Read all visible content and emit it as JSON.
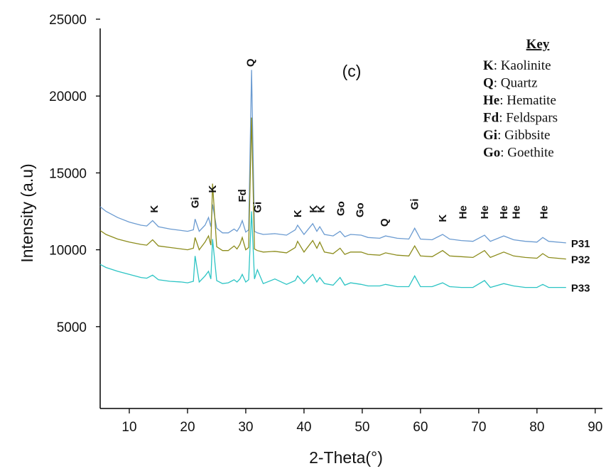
{
  "chart_data": {
    "type": "line",
    "panel_label": "(c)",
    "x_label": "2-Theta(°)",
    "y_label": "Intensity (a.u)",
    "xlim": [
      5,
      91
    ],
    "xticks": [
      10,
      20,
      30,
      40,
      50,
      60,
      70,
      80,
      90
    ],
    "ylim": [
      0,
      25000
    ],
    "yticks": [
      5000,
      10000,
      15000,
      20000,
      25000
    ],
    "x": [
      5,
      6,
      8,
      10,
      12,
      13,
      14,
      15,
      17,
      19,
      20,
      21,
      21.3,
      22,
      23,
      23.6,
      24,
      24.3,
      25,
      26,
      27,
      28,
      28.5,
      29,
      29.4,
      30,
      30.5,
      31,
      31.5,
      32,
      33,
      35,
      37,
      38.5,
      38.9,
      40,
      41.5,
      42.2,
      42.7,
      43.5,
      45,
      46.2,
      47,
      48,
      49.8,
      51,
      53,
      54,
      56,
      58,
      59,
      60,
      62,
      63.8,
      65,
      67,
      69,
      71,
      72,
      74.3,
      76,
      78,
      80,
      81,
      82,
      85
    ],
    "series": [
      {
        "name": "P31",
        "color": "#6b9bd1",
        "values": [
          12800,
          12500,
          12100,
          11800,
          11600,
          11550,
          11900,
          11500,
          11350,
          11250,
          11200,
          11300,
          12000,
          11200,
          11600,
          12100,
          11500,
          12950,
          11400,
          11100,
          11100,
          11350,
          11200,
          11500,
          11900,
          11150,
          11300,
          21700,
          11200,
          11100,
          11000,
          11050,
          10950,
          11300,
          11600,
          11000,
          11700,
          11200,
          11500,
          11000,
          10900,
          11200,
          10850,
          11000,
          10950,
          10800,
          10750,
          10900,
          10750,
          10700,
          11400,
          10700,
          10650,
          11000,
          10700,
          10600,
          10550,
          10950,
          10550,
          10900,
          10650,
          10550,
          10500,
          10800,
          10550,
          10450
        ]
      },
      {
        "name": "P32",
        "color": "#8c8c1c",
        "values": [
          11250,
          11000,
          10700,
          10500,
          10350,
          10300,
          10650,
          10250,
          10150,
          10050,
          10000,
          10100,
          10800,
          10000,
          10500,
          10900,
          10300,
          14300,
          10200,
          9950,
          9950,
          10250,
          10050,
          10350,
          10800,
          10000,
          10150,
          18600,
          10050,
          9950,
          9850,
          9900,
          9800,
          10150,
          10550,
          9850,
          10600,
          10100,
          10500,
          9850,
          9750,
          10100,
          9700,
          9850,
          9850,
          9700,
          9650,
          9800,
          9650,
          9600,
          10250,
          9600,
          9550,
          9950,
          9600,
          9550,
          9500,
          9950,
          9500,
          9850,
          9600,
          9500,
          9450,
          9750,
          9500,
          9400
        ]
      },
      {
        "name": "P33",
        "color": "#2cc4c4",
        "values": [
          9050,
          8850,
          8600,
          8400,
          8200,
          8150,
          8350,
          8050,
          7950,
          7900,
          7850,
          7950,
          9600,
          7900,
          8300,
          8600,
          8100,
          10700,
          8000,
          7800,
          7850,
          8050,
          7900,
          8100,
          8400,
          7900,
          8050,
          12500,
          8100,
          8700,
          7800,
          8100,
          7750,
          8000,
          8300,
          7800,
          8400,
          7900,
          8200,
          7800,
          7700,
          8200,
          7700,
          7850,
          7750,
          7650,
          7650,
          7750,
          7600,
          7600,
          8300,
          7600,
          7600,
          7850,
          7600,
          7550,
          7550,
          8000,
          7550,
          7800,
          7650,
          7550,
          7550,
          7750,
          7550,
          7550
        ]
      }
    ],
    "annotations": [
      {
        "text": "K",
        "x": 14.3,
        "y": 12400
      },
      {
        "text": "Gi",
        "x": 21.3,
        "y": 12700
      },
      {
        "text": "K",
        "x": 24.3,
        "y": 13700
      },
      {
        "text": "Fd",
        "x": 29.4,
        "y": 13100
      },
      {
        "text": "Gi",
        "x": 32.0,
        "y": 12400
      },
      {
        "text": "Q",
        "x": 30.8,
        "y": 21900
      },
      {
        "text": "K",
        "x": 38.9,
        "y": 12100
      },
      {
        "text": "K",
        "x": 41.6,
        "y": 12400
      },
      {
        "text": "K",
        "x": 42.9,
        "y": 12400
      },
      {
        "text": "Go",
        "x": 46.3,
        "y": 12200
      },
      {
        "text": "Go",
        "x": 49.6,
        "y": 12100
      },
      {
        "text": "Q",
        "x": 53.8,
        "y": 11500
      },
      {
        "text": "Gi",
        "x": 59.0,
        "y": 12600
      },
      {
        "text": "K",
        "x": 63.8,
        "y": 11800
      },
      {
        "text": "He",
        "x": 67.3,
        "y": 12000
      },
      {
        "text": "He",
        "x": 71.0,
        "y": 12000
      },
      {
        "text": "He",
        "x": 74.3,
        "y": 12000
      },
      {
        "text": "He",
        "x": 76.4,
        "y": 12000
      },
      {
        "text": "He",
        "x": 81.2,
        "y": 12000
      }
    ],
    "key": {
      "title": "Key",
      "items": [
        {
          "symbol": "K",
          "text": ": Kaolinite"
        },
        {
          "symbol": "Q",
          "text": ": Quartz"
        },
        {
          "symbol": "He",
          "text": ": Hematite"
        },
        {
          "symbol": "Fd",
          "text": ": Feldspars"
        },
        {
          "symbol": "Gi",
          "text": ": Gibbsite"
        },
        {
          "symbol": "Go",
          "text": ": Goethite"
        }
      ]
    }
  }
}
